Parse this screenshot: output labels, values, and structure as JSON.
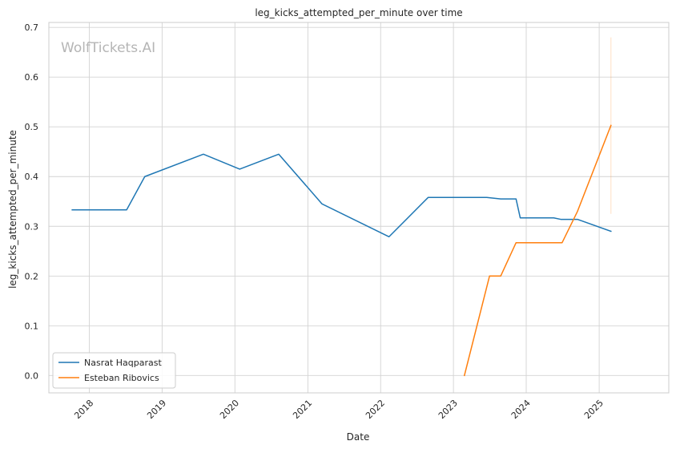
{
  "watermark": "WolfTickets.AI",
  "chart_data": {
    "type": "line",
    "title": "leg_kicks_attempted_per_minute over time",
    "xlabel": "Date",
    "ylabel": "leg_kicks_attempted_per_minute",
    "xlim": [
      "2017-06-12",
      "2025-12-16"
    ],
    "ylim": [
      -0.035,
      0.71
    ],
    "x_ticks": [
      "2018",
      "2019",
      "2020",
      "2021",
      "2022",
      "2023",
      "2024",
      "2025"
    ],
    "y_ticks": [
      0.0,
      0.1,
      0.2,
      0.3,
      0.4,
      0.5,
      0.6,
      0.7
    ],
    "y_tick_labels": [
      "0.0",
      "0.1",
      "0.2",
      "0.3",
      "0.4",
      "0.5",
      "0.6",
      "0.7"
    ],
    "grid": true,
    "legend_position": "lower-left",
    "series": [
      {
        "name": "Nasrat Haqparast",
        "color": "#1f77b4",
        "points": [
          [
            "2017-10-07",
            0.333
          ],
          [
            "2018-07-07",
            0.333
          ],
          [
            "2018-10-06",
            0.4
          ],
          [
            "2019-07-27",
            0.445
          ],
          [
            "2020-01-25",
            0.415
          ],
          [
            "2020-08-08",
            0.445
          ],
          [
            "2021-03-13",
            0.345
          ],
          [
            "2022-02-12",
            0.279
          ],
          [
            "2022-08-27",
            0.358
          ],
          [
            "2023-06-17",
            0.358
          ],
          [
            "2023-08-26",
            0.355
          ],
          [
            "2023-11-11",
            0.355
          ],
          [
            "2023-12-02",
            0.317
          ],
          [
            "2024-05-18",
            0.317
          ],
          [
            "2024-06-22",
            0.314
          ],
          [
            "2024-09-14",
            0.314
          ],
          [
            "2025-03-01",
            0.29
          ]
        ]
      },
      {
        "name": "Esteban Ribovics",
        "color": "#ff7f0e",
        "points": [
          [
            "2023-02-25",
            0.0
          ],
          [
            "2023-07-01",
            0.2
          ],
          [
            "2023-08-26",
            0.2
          ],
          [
            "2023-11-11",
            0.267
          ],
          [
            "2024-06-29",
            0.267
          ],
          [
            "2024-09-14",
            0.33
          ],
          [
            "2025-03-01",
            0.503
          ]
        ],
        "error_band": {
          "x": "2025-03-01",
          "low": 0.325,
          "high": 0.68
        }
      }
    ]
  }
}
